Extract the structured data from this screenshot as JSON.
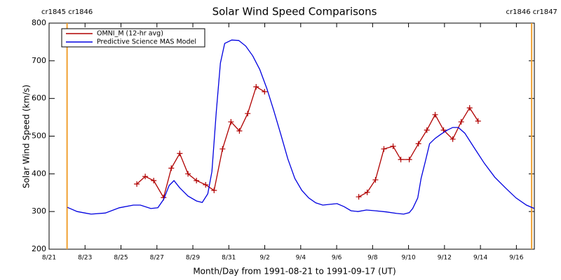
{
  "chart_data": {
    "type": "line",
    "title": "Solar Wind Speed Comparisons",
    "xlabel": "Month/Day from 1991-08-21 to 1991-09-17 (UT)",
    "ylabel": "Solar Wind Speed (km/s)",
    "xlim": [
      0,
      27
    ],
    "ylim": [
      200,
      800
    ],
    "xticks": [
      {
        "value": 0,
        "label": "8/21"
      },
      {
        "value": 2,
        "label": "8/23"
      },
      {
        "value": 4,
        "label": "8/25"
      },
      {
        "value": 6,
        "label": "8/27"
      },
      {
        "value": 8,
        "label": "8/29"
      },
      {
        "value": 10,
        "label": "8/31"
      },
      {
        "value": 12,
        "label": "9/2"
      },
      {
        "value": 14,
        "label": "9/4"
      },
      {
        "value": 16,
        "label": "9/6"
      },
      {
        "value": 18,
        "label": "9/8"
      },
      {
        "value": 20,
        "label": "9/10"
      },
      {
        "value": 22,
        "label": "9/12"
      },
      {
        "value": 24,
        "label": "9/14"
      },
      {
        "value": 26,
        "label": "9/16"
      }
    ],
    "yticks": [
      200,
      300,
      400,
      500,
      600,
      700,
      800
    ],
    "legend": "upper left",
    "annotations": [
      {
        "x": 1.0,
        "label": "cr1845 cr1846",
        "color": "#f0a030"
      },
      {
        "x": 26.85,
        "label": "cr1846 cr1847",
        "color": "#f0a030"
      }
    ],
    "series": [
      {
        "name": "OMNI_M (12-hr avg)",
        "color": "#b00000",
        "marker": "+",
        "x": [
          4.88,
          5.35,
          5.82,
          6.37,
          6.8,
          7.27,
          7.73,
          8.2,
          8.71,
          9.18,
          9.65,
          10.12,
          10.59,
          11.05,
          11.52,
          11.99,
          14.6,
          17.23,
          17.7,
          18.16,
          18.63,
          19.14,
          19.57,
          20.04,
          20.55,
          21.02,
          21.48,
          21.95,
          22.46,
          22.93,
          23.4,
          23.87
        ],
        "values": [
          373,
          393,
          382,
          337,
          415,
          454,
          400,
          382,
          371,
          356,
          466,
          538,
          514,
          560,
          631,
          618,
          null,
          339,
          351,
          384,
          466,
          473,
          438,
          438,
          480,
          516,
          557,
          516,
          492,
          538,
          575,
          540
        ]
      },
      {
        "name": "Predictive Science MAS Model",
        "color": "#0000e0",
        "x": [
          1.02,
          1.56,
          2.34,
          3.13,
          3.91,
          4.69,
          5.08,
          5.66,
          6.05,
          6.37,
          6.68,
          6.95,
          7.27,
          7.73,
          8.2,
          8.52,
          8.83,
          9.06,
          9.3,
          9.53,
          9.77,
          10.16,
          10.55,
          10.94,
          11.33,
          11.72,
          12.11,
          12.5,
          12.89,
          13.28,
          13.67,
          14.06,
          14.45,
          14.84,
          15.23,
          15.63,
          16.02,
          16.41,
          16.8,
          17.19,
          17.66,
          18.16,
          18.75,
          19.34,
          19.73,
          20.04,
          20.23,
          20.51,
          20.7,
          20.94,
          21.17,
          21.48,
          21.8,
          22.15,
          22.46,
          22.77,
          23.13,
          23.63,
          24.22,
          24.8,
          25.39,
          25.98,
          26.56,
          27.0
        ],
        "values": [
          311,
          300,
          293,
          296,
          310,
          317,
          317,
          308,
          310,
          332,
          369,
          382,
          363,
          341,
          328,
          324,
          347,
          406,
          564,
          694,
          746,
          755,
          754,
          739,
          713,
          677,
          627,
          568,
          505,
          440,
          388,
          356,
          336,
          323,
          317,
          319,
          321,
          313,
          302,
          300,
          304,
          302,
          299,
          295,
          293,
          297,
          308,
          336,
          388,
          434,
          480,
          494,
          505,
          516,
          523,
          523,
          508,
          471,
          428,
          391,
          363,
          336,
          317,
          308
        ]
      }
    ]
  }
}
